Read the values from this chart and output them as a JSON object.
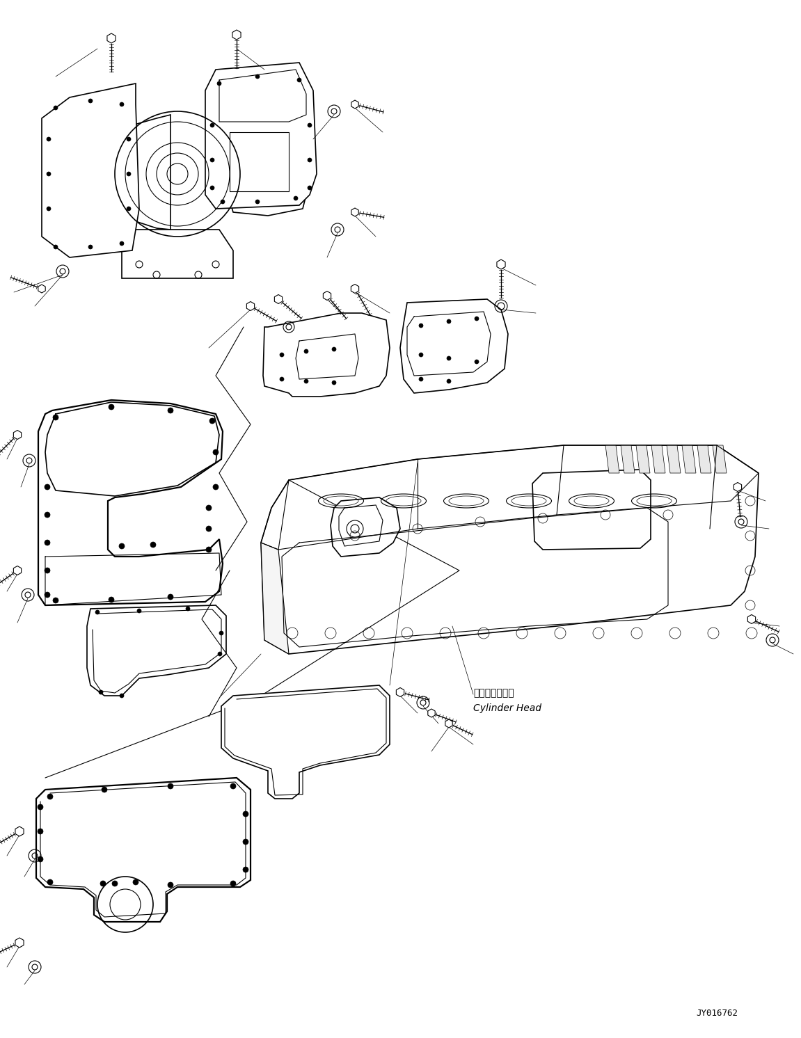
{
  "background_color": "#ffffff",
  "line_color": "#000000",
  "fig_width": 11.51,
  "fig_height": 14.92,
  "dpi": 100,
  "watermark_text": "JY016762",
  "label_cylinder_head_jp": "シリンダヘッド",
  "label_cylinder_head_en": "Cylinder Head"
}
